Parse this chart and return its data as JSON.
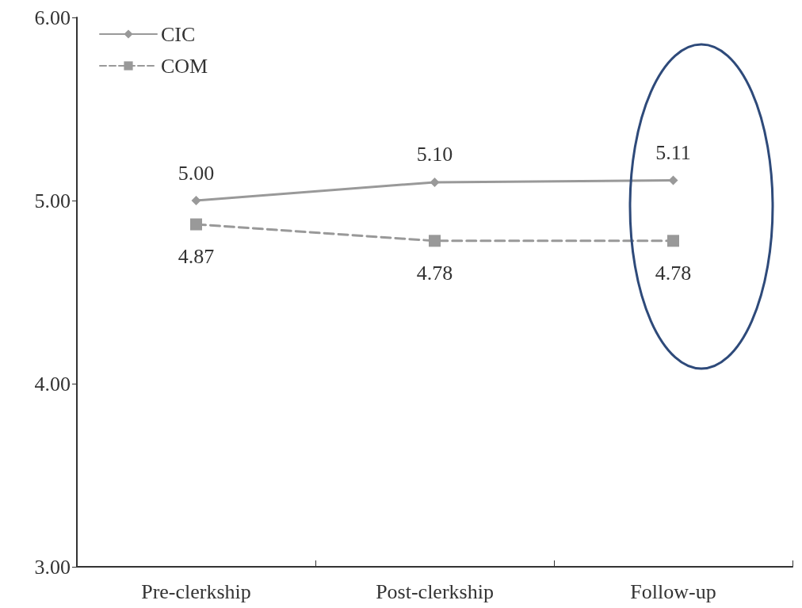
{
  "chart_data": {
    "type": "line",
    "categories": [
      "Pre-clerkship",
      "Post-clerkship",
      "Follow-up"
    ],
    "series": [
      {
        "name": "CIC",
        "color": "#999999",
        "values": [
          5.0,
          5.1,
          5.11
        ],
        "marker": "diamond",
        "line_style": "solid",
        "value_labels": [
          "5.00",
          "5.10",
          "5.11"
        ]
      },
      {
        "name": "COM",
        "color": "#999999",
        "values": [
          4.87,
          4.78,
          4.78
        ],
        "marker": "square",
        "line_style": "dashed",
        "value_labels": [
          "4.87",
          "4.78",
          "4.78"
        ]
      }
    ],
    "ylim": [
      3,
      6
    ],
    "yticks": [
      {
        "value": 3,
        "label": "3.00"
      },
      {
        "value": 4,
        "label": "4.00"
      },
      {
        "value": 5,
        "label": "5.00"
      },
      {
        "value": 6,
        "label": "6.00"
      }
    ],
    "grid": false,
    "legend": "top left"
  }
}
